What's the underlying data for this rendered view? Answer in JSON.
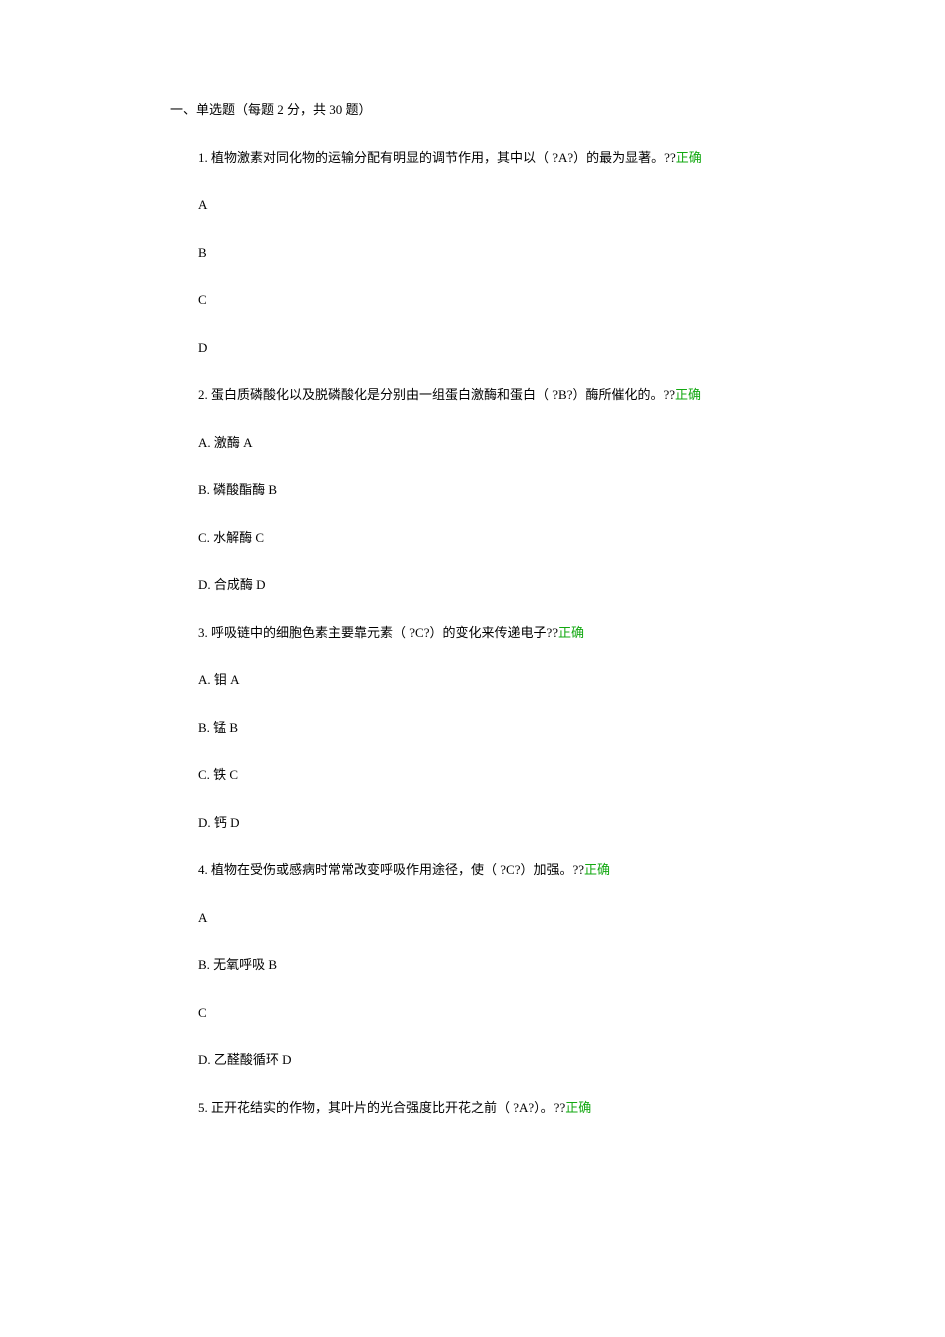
{
  "section": {
    "header": "一、单选题（每题 2 分，共 30 题）"
  },
  "questions": [
    {
      "text": "1. 植物激素对同化物的运输分配有明显的调节作用，其中以（ ?A?）的最为显著。??",
      "status": "正确",
      "options": [
        {
          "text": " A"
        },
        {
          "text": " B"
        },
        {
          "text": " C"
        },
        {
          "text": " D"
        }
      ]
    },
    {
      "text": "2. 蛋白质磷酸化以及脱磷酸化是分别由一组蛋白激酶和蛋白（ ?B?）酶所催化的。??",
      "status": "正确",
      "options": [
        {
          "text": "A. 激酶 A"
        },
        {
          "text": "B. 磷酸酯酶 B"
        },
        {
          "text": "C. 水解酶 C"
        },
        {
          "text": "D. 合成酶 D"
        }
      ]
    },
    {
      "text": "3. 呼吸链中的细胞色素主要靠元素（ ?C?）的变化来传递电子??",
      "status": "正确",
      "options": [
        {
          "text": "A. 钼 A"
        },
        {
          "text": "B. 锰 B"
        },
        {
          "text": "C. 铁 C"
        },
        {
          "text": "D. 钙 D"
        }
      ]
    },
    {
      "text": "4. 植物在受伤或感病时常常改变呼吸作用途径，使（ ?C?）加强。??",
      "status": "正确",
      "options": [
        {
          "text": " A"
        },
        {
          "text": "B. 无氧呼吸 B"
        },
        {
          "text": " C"
        },
        {
          "text": "D. 乙醛酸循环 D"
        }
      ]
    },
    {
      "text": "5. 正开花结实的作物，其叶片的光合强度比开花之前（ ?A?）。??",
      "status": "正确",
      "options": []
    }
  ],
  "colors": {
    "text": "#000000",
    "correct": "#12a810",
    "background": "#ffffff"
  }
}
